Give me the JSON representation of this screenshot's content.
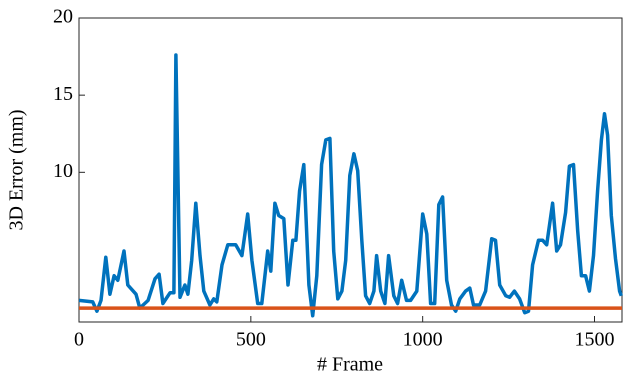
{
  "chart_data": {
    "type": "line",
    "xlabel": "# Frame",
    "ylabel": "3D Error (mm)",
    "xlim": [
      0,
      1580
    ],
    "ylim": [
      0.3,
      20
    ],
    "xticks": [
      0,
      500,
      1000,
      1500
    ],
    "yticks": [
      10,
      15,
      20
    ],
    "series": [
      {
        "color": "#0072bd",
        "x": [
          0,
          40,
          52,
          64,
          78,
          90,
          102,
          113,
          131,
          142,
          166,
          177,
          201,
          221,
          233,
          244,
          265,
          276,
          282,
          294,
          308,
          317,
          328,
          340,
          352,
          363,
          381,
          392,
          401,
          416,
          433,
          456,
          474,
          491,
          503,
          520,
          532,
          549,
          558,
          570,
          581,
          596,
          608,
          622,
          631,
          642,
          654,
          669,
          680,
          692,
          706,
          718,
          730,
          741,
          753,
          765,
          776,
          788,
          800,
          811,
          823,
          834,
          846,
          858,
          866,
          878,
          890,
          901,
          916,
          927,
          939,
          953,
          965,
          983,
          1000,
          1012,
          1023,
          1035,
          1047,
          1058,
          1070,
          1084,
          1096,
          1108,
          1125,
          1137,
          1148,
          1166,
          1183,
          1201,
          1212,
          1224,
          1242,
          1253,
          1267,
          1282,
          1297,
          1308,
          1320,
          1337,
          1349,
          1361,
          1378,
          1390,
          1401,
          1416,
          1427,
          1439,
          1451,
          1462,
          1474,
          1485,
          1497,
          1509,
          1520,
          1529,
          1538,
          1549,
          1561,
          1573,
          1578
        ],
        "values": [
          1.7,
          1.6,
          1.0,
          1.7,
          4.5,
          2.1,
          3.3,
          3.0,
          4.9,
          2.7,
          2.1,
          1.2,
          1.7,
          3.1,
          3.4,
          1.5,
          2.2,
          2.2,
          17.6,
          1.9,
          2.7,
          2.1,
          4.3,
          8.0,
          4.6,
          2.3,
          1.4,
          1.8,
          1.6,
          4.0,
          5.3,
          5.3,
          4.6,
          7.3,
          4.3,
          1.5,
          1.5,
          4.9,
          3.6,
          8.0,
          7.2,
          7.0,
          2.7,
          5.6,
          5.6,
          8.8,
          10.5,
          2.7,
          0.7,
          3.3,
          10.5,
          12.1,
          12.2,
          4.9,
          1.8,
          2.3,
          4.3,
          9.8,
          11.2,
          10.1,
          5.6,
          2.0,
          1.5,
          2.3,
          4.6,
          2.3,
          1.5,
          4.6,
          2.0,
          1.5,
          3.0,
          1.7,
          1.7,
          2.3,
          7.3,
          6.0,
          1.5,
          1.5,
          7.9,
          8.4,
          3.0,
          1.4,
          1.0,
          1.8,
          2.3,
          2.5,
          1.4,
          1.4,
          2.3,
          5.7,
          5.6,
          2.7,
          2.0,
          1.9,
          2.3,
          1.8,
          0.9,
          1.0,
          4.0,
          5.6,
          5.6,
          5.3,
          8.0,
          4.9,
          5.3,
          7.4,
          10.4,
          10.5,
          6.2,
          3.3,
          3.3,
          2.3,
          4.6,
          8.8,
          12.1,
          13.8,
          12.4,
          7.2,
          4.4,
          2.3,
          2.0
        ]
      },
      {
        "color": "#d95319",
        "x": [
          0,
          1580
        ],
        "values": [
          1.2,
          1.2
        ]
      }
    ]
  }
}
